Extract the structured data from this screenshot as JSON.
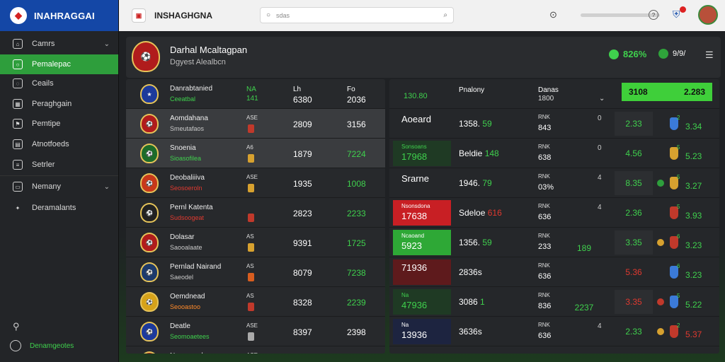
{
  "sidebar": {
    "brand": "INAHRAGGAI",
    "items": [
      {
        "label": "Camrs",
        "icon": "home-icon",
        "chevron": "⌄"
      },
      {
        "label": "Pemalepac",
        "icon": "search-icon",
        "active": true
      },
      {
        "label": "Ceails",
        "icon": "chat-icon"
      },
      {
        "label": "Peraghgain",
        "icon": "grid-icon"
      },
      {
        "label": "Pemtipe",
        "icon": "flag-icon"
      },
      {
        "label": "Atnotfoeds",
        "icon": "chart-icon"
      },
      {
        "label": "Setrler",
        "icon": "list-icon"
      },
      {
        "label": "Nemany",
        "icon": "calendar-icon",
        "chevron": "⌄"
      },
      {
        "label": "Deramalants",
        "icon": "user-icon"
      }
    ],
    "bottom": "Denamgeotes"
  },
  "topbar": {
    "name": "INSHAGHGNA",
    "search_placeholder": "sdas"
  },
  "team_header": {
    "title": "Darhal Mcaltagpan",
    "subtitle": "Dgyest Alealbcn",
    "stat": "826%",
    "stat2": "9/9/"
  },
  "left_table": {
    "header": {
      "name": "Danrabtanied",
      "sub": "Ceeatbal",
      "tag": "NA",
      "tag2": "141",
      "v1": "Lh",
      "v1b": "6380",
      "v2": "Fo",
      "v2b": "2036"
    },
    "rows": [
      {
        "name": "Aomdahana",
        "sub": "Smeutafaos",
        "sub_color": "plain",
        "tag": "ASE",
        "badge": "#c0392b",
        "v1": "2809",
        "v2": "3156",
        "v2_color": "plain",
        "crest": "#b01c1c",
        "hl": true
      },
      {
        "name": "Snoenia",
        "sub": "Sioasofilea",
        "sub_color": "green",
        "tag": "A6",
        "badge": "#d7a12f",
        "v1": "1879",
        "v2": "7224",
        "v2_color": "green",
        "crest": "#1d6b2a",
        "hl": true
      },
      {
        "name": "Deobaliiiva",
        "sub": "Seosoeroln",
        "sub_color": "red",
        "tag": "ASE",
        "badge": "#d7a12f",
        "v1": "1935",
        "v2": "1008",
        "v2_color": "green",
        "crest": "#c7381a"
      },
      {
        "name": "Pernl Katenta",
        "sub": "Sudsoogeat",
        "sub_color": "red",
        "tag": "",
        "badge": "#c0392b",
        "v1": "2823",
        "v2": "2233",
        "v2_color": "green",
        "crest": "#222"
      },
      {
        "name": "Dolasar",
        "sub": "Saooalaate",
        "sub_color": "plain",
        "tag": "AS",
        "badge": "#d7a12f",
        "v1": "9391",
        "v2": "1725",
        "v2_color": "green",
        "crest": "#b01c1c"
      },
      {
        "name": "Pernlad Nairand",
        "sub": "Saeodel",
        "sub_color": "plain",
        "tag": "AS",
        "badge": "#d85d1f",
        "v1": "8079",
        "v2": "7238",
        "v2_color": "green",
        "crest": "#1d3a6b"
      },
      {
        "name": "Oemdnead",
        "sub": "Seooastoo",
        "sub_color": "orange",
        "tag": "AS",
        "badge": "#c0392b",
        "v1": "8328",
        "v2": "2239",
        "v2_color": "green",
        "crest": "#d6a21a"
      },
      {
        "name": "Deatle",
        "sub": "Seomoaetees",
        "sub_color": "green",
        "tag": "ASE",
        "badge": "#aaaaaa",
        "v1": "8397",
        "v2": "2398",
        "v2_color": "plain",
        "crest": "#1d3a9b"
      },
      {
        "name": "Namorarul",
        "sub": "",
        "sub_color": "plain",
        "tag": "ASE",
        "badge": "#d7a12f",
        "v1": "",
        "v2": "",
        "v2_color": "plain",
        "crest": "#b01c1c"
      }
    ]
  },
  "right_table": {
    "header": {
      "col1": "130.80",
      "col2": "Pnalony",
      "col3": "Danas",
      "col3b": "1800",
      "box_left": "3108",
      "box_right": "2.283"
    },
    "rows": [
      {
        "c1": "Aoeard",
        "c1_small": "",
        "c1_style": "plain",
        "c2": "1358.",
        "c2_g": "59",
        "c3": "RNK",
        "c3b": "843",
        "c4": "0",
        "c5": "2.33",
        "c5_box": true,
        "c6": "2",
        "c6b": "3.34",
        "ico": "#3b7ad8"
      },
      {
        "c1": "17968",
        "c1_small": "Sonsoans",
        "c1_style": "dgreen",
        "c2": "Beldie",
        "c2_g": "148",
        "c3": "RNK",
        "c3b": "638",
        "c4": "0",
        "c5": "4.56",
        "c5_box": false,
        "c6": "5",
        "c6b": "5.23",
        "ico": "#d7a12f"
      },
      {
        "c1": "Srarne",
        "c1_small": "",
        "c1_style": "plain",
        "c2": "1946.",
        "c2_g": "79",
        "c3": "RNK",
        "c3b": "03%",
        "c4": "4",
        "c5": "8.35",
        "c5_box": true,
        "c6": "5",
        "c6b": "3.27",
        "ico": "#d7a12f",
        "ico2": "#2e9e3c"
      },
      {
        "c1": "17638",
        "c1_small": "Nsonsdona",
        "c1_style": "red",
        "c2": "Sdeloe",
        "c2_r": "616",
        "c3": "RNK",
        "c3b": "636",
        "c4": "4",
        "c5": "2.36",
        "c5_box": false,
        "c6": "5",
        "c6b": "3.93",
        "ico": "#c0392b"
      },
      {
        "c1": "5923",
        "c1_small": "Ncaoand",
        "c1_style": "green",
        "c2": "1356.",
        "c2_g": "59",
        "c3": "RNK",
        "c3b": "233",
        "c4b": "189",
        "c5": "3.35",
        "c5_box": true,
        "c6": "6",
        "c6b": "3.23",
        "ico": "#c0392b",
        "ico2": "#d7a12f"
      },
      {
        "c1": "71936",
        "c1_small": "",
        "c1_style": "dred",
        "c2": "2836s",
        "c3": "RNK",
        "c3b": "636",
        "c4": "",
        "c5": "5.36",
        "c5_box": false,
        "c5_red": true,
        "c6": "6",
        "c6b": "3.23",
        "ico": "#3b7ad8"
      },
      {
        "c1": "47936",
        "c1_small": "Na",
        "c1_style": "dgreen",
        "c2": "3086",
        "c2_g": "1",
        "c3": "RNK",
        "c3b": "836",
        "c4b": "2237",
        "c5": "3.35",
        "c5_box": true,
        "c5_red": true,
        "c6": "5",
        "c6b": "5.22",
        "ico": "#3b7ad8",
        "ico2": "#c0392b"
      },
      {
        "c1": "13936",
        "c1_small": "Na",
        "c1_style": "navy",
        "c2": "3636s",
        "c3": "RNK",
        "c3b": "636",
        "c4": "4",
        "c5": "2.33",
        "c5_box": false,
        "c6": "2",
        "c6b": "5.37",
        "c6b_red": true,
        "ico": "#c0392b",
        "ico2": "#d7a12f"
      }
    ]
  }
}
